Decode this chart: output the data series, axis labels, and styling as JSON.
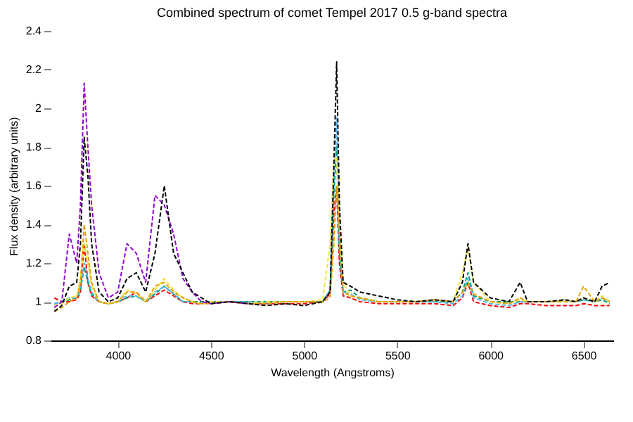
{
  "chart_data": {
    "type": "line",
    "title": "Combined spectrum of comet Tempel 2017 0.5 g-band spectra",
    "xlabel": "Wavelength (Angstroms)",
    "ylabel": "Flux density (arbitrary units)",
    "xlim": [
      3640,
      6660
    ],
    "xticks": [
      4000,
      4500,
      5000,
      5500,
      6000,
      6500
    ],
    "ylim": [
      0.8,
      2.4
    ],
    "yticks": [
      0.8,
      1,
      1.2,
      1.4,
      1.6,
      1.8,
      2,
      2.2,
      2.4
    ],
    "grid": false,
    "legend": false,
    "line_style": "dashed",
    "x": [
      3660,
      3700,
      3740,
      3780,
      3800,
      3820,
      3840,
      3860,
      3900,
      3950,
      4000,
      4050,
      4100,
      4150,
      4200,
      4250,
      4300,
      4350,
      4400,
      4450,
      4500,
      4600,
      4700,
      4800,
      4900,
      5000,
      5100,
      5140,
      5160,
      5175,
      5190,
      5210,
      5250,
      5300,
      5400,
      5500,
      5600,
      5700,
      5800,
      5850,
      5880,
      5910,
      6000,
      6100,
      6160,
      6200,
      6300,
      6400,
      6460,
      6500,
      6560,
      6600,
      6640
    ],
    "series": [
      {
        "color": "#000000",
        "values": [
          0.95,
          0.98,
          1.08,
          1.1,
          1.3,
          1.85,
          1.65,
          1.3,
          1.05,
          1.0,
          1.02,
          1.12,
          1.15,
          1.05,
          1.25,
          1.6,
          1.25,
          1.15,
          1.05,
          1.02,
          0.99,
          1.0,
          0.99,
          0.98,
          0.99,
          0.98,
          1.0,
          1.05,
          1.7,
          2.24,
          1.5,
          1.1,
          1.08,
          1.05,
          1.03,
          1.01,
          1.0,
          1.01,
          1.0,
          1.1,
          1.3,
          1.1,
          1.02,
          1.0,
          1.1,
          1.0,
          1.0,
          1.01,
          1.0,
          1.02,
          1.0,
          1.08,
          1.1
        ]
      },
      {
        "color": "#9400d3",
        "x": [
          3660,
          3700,
          3740,
          3780,
          3800,
          3820,
          3840,
          3860,
          3900,
          3950,
          4000,
          4050,
          4100,
          4150,
          4200,
          4250,
          4300,
          4350,
          4400,
          4450,
          4500,
          4600,
          4700
        ],
        "values": [
          0.97,
          1.0,
          1.35,
          1.2,
          1.5,
          2.13,
          1.8,
          1.5,
          1.15,
          1.02,
          1.05,
          1.3,
          1.25,
          1.1,
          1.55,
          1.5,
          1.35,
          1.12,
          1.05,
          1.0,
          0.99,
          1.0,
          0.99
        ]
      },
      {
        "color": "#e69f00",
        "values": [
          0.95,
          0.97,
          1.0,
          1.02,
          1.1,
          1.4,
          1.25,
          1.1,
          1.0,
          0.99,
          1.0,
          1.05,
          1.05,
          1.0,
          1.08,
          1.1,
          1.05,
          1.02,
          1.0,
          0.99,
          0.99,
          1.0,
          0.99,
          0.99,
          1.0,
          1.0,
          1.0,
          1.02,
          1.3,
          1.6,
          1.35,
          1.05,
          1.03,
          1.02,
          1.0,
          1.0,
          1.0,
          1.01,
          1.0,
          1.05,
          1.1,
          1.04,
          1.0,
          0.99,
          1.02,
          1.0,
          1.0,
          1.0,
          1.0,
          1.08,
          1.0,
          1.02,
          1.0
        ]
      },
      {
        "color": "#f0e442",
        "values": [
          0.98,
          0.99,
          1.02,
          1.03,
          1.12,
          1.3,
          1.2,
          1.08,
          1.0,
          0.99,
          1.0,
          1.06,
          1.04,
          1.0,
          1.06,
          1.12,
          1.06,
          1.02,
          1.0,
          0.99,
          1.0,
          1.0,
          0.99,
          1.0,
          1.0,
          1.0,
          1.01,
          1.3,
          1.72,
          1.75,
          1.4,
          1.1,
          1.03,
          1.02,
          1.0,
          1.0,
          1.0,
          1.01,
          1.0,
          1.15,
          1.28,
          1.1,
          1.0,
          0.99,
          1.01,
          1.0,
          1.0,
          1.01,
          1.0,
          1.02,
          1.0,
          1.03,
          1.0
        ]
      },
      {
        "color": "#56b4e9",
        "values": [
          0.99,
          1.0,
          1.02,
          1.02,
          1.08,
          1.2,
          1.12,
          1.05,
          1.0,
          0.99,
          1.0,
          1.03,
          1.03,
          1.0,
          1.05,
          1.08,
          1.04,
          1.0,
          1.0,
          0.99,
          1.0,
          1.0,
          1.0,
          0.99,
          1.0,
          1.0,
          1.0,
          1.06,
          1.6,
          1.95,
          1.3,
          1.05,
          1.04,
          1.01,
          1.0,
          1.0,
          1.0,
          1.0,
          0.99,
          1.03,
          1.12,
          1.02,
          0.99,
          0.98,
          1.0,
          1.0,
          1.0,
          1.0,
          1.0,
          1.01,
          1.0,
          1.02,
          1.0
        ]
      },
      {
        "color": "#009e73",
        "values": [
          0.99,
          1.0,
          1.01,
          1.02,
          1.06,
          1.18,
          1.1,
          1.04,
          1.0,
          0.99,
          1.0,
          1.02,
          1.03,
          1.0,
          1.04,
          1.08,
          1.04,
          1.0,
          1.0,
          1.0,
          1.0,
          1.0,
          1.0,
          1.0,
          1.0,
          1.0,
          1.0,
          1.06,
          1.55,
          1.8,
          1.25,
          1.05,
          1.06,
          1.02,
          1.0,
          1.0,
          1.0,
          1.0,
          1.0,
          1.05,
          1.15,
          1.03,
          1.0,
          1.0,
          1.0,
          1.0,
          1.0,
          1.01,
          1.0,
          1.01,
          1.0,
          1.01,
          0.99
        ]
      },
      {
        "color": "#ff0000",
        "values": [
          1.02,
          1.0,
          1.0,
          1.01,
          1.05,
          1.3,
          1.1,
          1.03,
          1.0,
          0.99,
          1.0,
          1.02,
          1.05,
          1.0,
          1.03,
          1.06,
          1.03,
          1.0,
          0.99,
          0.99,
          1.0,
          1.0,
          0.99,
          0.99,
          0.99,
          0.99,
          1.0,
          1.04,
          1.45,
          1.6,
          1.2,
          1.03,
          1.02,
          1.0,
          0.99,
          0.99,
          0.99,
          0.99,
          0.98,
          1.02,
          1.1,
          1.0,
          0.98,
          0.97,
          0.99,
          0.99,
          0.98,
          0.98,
          0.98,
          0.99,
          0.98,
          0.98,
          0.98
        ]
      }
    ]
  }
}
